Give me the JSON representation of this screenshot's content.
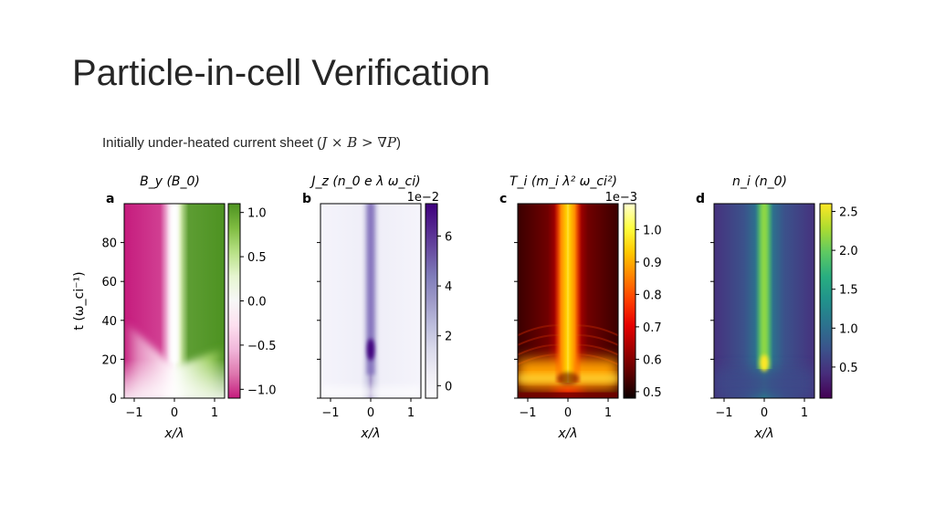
{
  "slide": {
    "title": "Particle-in-cell Verification",
    "subtitle_text": "Initially under-heated current sheet (",
    "subtitle_math": "J × B > ∇P",
    "subtitle_close": ")"
  },
  "chart_data": [
    {
      "type": "heatmap",
      "panel_label": "a",
      "title": "B_y (B_0)",
      "xlabel": "x/λ",
      "ylabel": "t (ω_ci⁻¹)",
      "xlim": [
        -1.25,
        1.25
      ],
      "ylim": [
        0,
        100
      ],
      "xticks": [
        -1,
        0,
        1
      ],
      "yticks": [
        0,
        20,
        40,
        60,
        80
      ],
      "colormap": "PiYG",
      "colorbar": {
        "range": [
          -1.1,
          1.1
        ],
        "ticks": [
          -1.0,
          -0.5,
          0.0,
          0.5,
          1.0
        ],
        "tick_labels": [
          "−1.0",
          "−0.5",
          "0.0",
          "0.5",
          "1.0"
        ],
        "offset": ""
      }
    },
    {
      "type": "heatmap",
      "panel_label": "b",
      "title": "J_z (n_0 e λ ω_ci)",
      "xlabel": "x/λ",
      "xlim": [
        -1.25,
        1.25
      ],
      "ylim": [
        0,
        100
      ],
      "xticks": [
        -1,
        0,
        1
      ],
      "colormap": "Purples",
      "colorbar": {
        "range": [
          -0.5,
          7.3
        ],
        "ticks": [
          0,
          2,
          4,
          6
        ],
        "tick_labels": [
          "0",
          "2",
          "4",
          "6"
        ],
        "offset": "1e−2"
      }
    },
    {
      "type": "heatmap",
      "panel_label": "c",
      "title": "T_i (m_i λ² ω_ci²)",
      "xlabel": "x/λ",
      "xlim": [
        -1.25,
        1.25
      ],
      "ylim": [
        0,
        100
      ],
      "xticks": [
        -1,
        0,
        1
      ],
      "colormap": "hot",
      "colorbar": {
        "range": [
          0.48,
          1.08
        ],
        "ticks": [
          0.5,
          0.6,
          0.7,
          0.8,
          0.9,
          1.0
        ],
        "tick_labels": [
          "0.5",
          "0.6",
          "0.7",
          "0.8",
          "0.9",
          "1.0"
        ],
        "offset": "1e−3"
      }
    },
    {
      "type": "heatmap",
      "panel_label": "d",
      "title": "n_i (n_0)",
      "xlabel": "x/λ",
      "xlim": [
        -1.25,
        1.25
      ],
      "ylim": [
        0,
        100
      ],
      "xticks": [
        -1,
        0,
        1
      ],
      "colormap": "viridis",
      "colorbar": {
        "range": [
          0.1,
          2.6
        ],
        "ticks": [
          0.5,
          1.0,
          1.5,
          2.0,
          2.5
        ],
        "tick_labels": [
          "0.5",
          "1.0",
          "1.5",
          "2.0",
          "2.5"
        ],
        "offset": ""
      }
    }
  ]
}
